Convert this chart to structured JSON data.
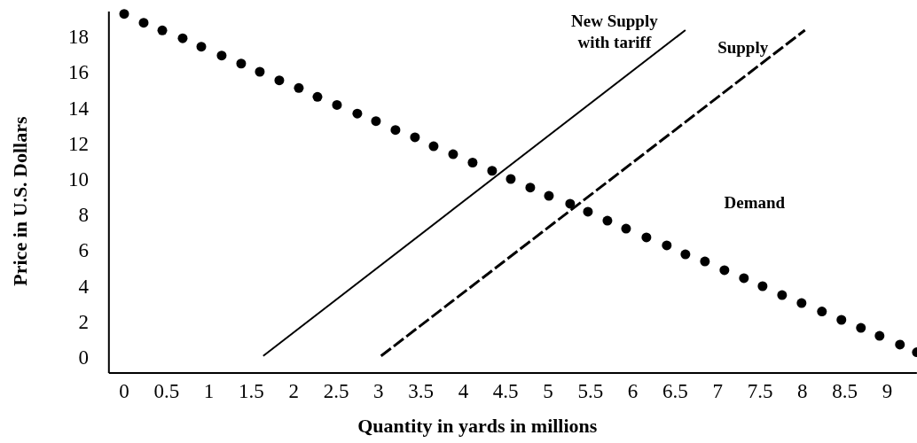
{
  "chart_data": {
    "type": "line",
    "xlabel": "Quantity in yards in millions",
    "ylabel": "Price in U.S. Dollars",
    "xlim": [
      -0.18,
      9.35
    ],
    "ylim": [
      -0.9,
      19.4
    ],
    "xticks": [
      0,
      0.5,
      1,
      1.5,
      2,
      2.5,
      3,
      3.5,
      4,
      4.5,
      5,
      5.5,
      6,
      6.5,
      7,
      7.5,
      8,
      8.5,
      9
    ],
    "yticks": [
      0,
      2,
      4,
      6,
      8,
      10,
      12,
      14,
      16,
      18
    ],
    "grid": false,
    "legend": false,
    "series": [
      {
        "name": "New Supply with tariff",
        "type": "line",
        "line_style": "solid",
        "color": "#000000",
        "x": [
          1.64,
          6.62
        ],
        "values": [
          0.06,
          18.36
        ]
      },
      {
        "name": "Supply",
        "type": "line",
        "line_style": "dashed",
        "color": "#000000",
        "x": [
          3.03,
          8.03
        ],
        "values": [
          0.06,
          18.36
        ]
      },
      {
        "name": "Demand",
        "type": "scatter",
        "marker": "circle",
        "color": "#000000",
        "x": [
          0,
          0.23,
          0.45,
          0.69,
          0.91,
          1.15,
          1.38,
          1.6,
          1.83,
          2.06,
          2.28,
          2.51,
          2.75,
          2.97,
          3.2,
          3.43,
          3.65,
          3.88,
          4.11,
          4.34,
          4.56,
          4.79,
          5.01,
          5.26,
          5.47,
          5.7,
          5.92,
          6.16,
          6.4,
          6.62,
          6.85,
          7.08,
          7.31,
          7.53,
          7.76,
          7.99,
          8.23,
          8.46,
          8.69,
          8.91,
          9.15,
          9.35
        ],
        "values": [
          19.27,
          18.77,
          18.34,
          17.9,
          17.43,
          16.93,
          16.48,
          16.02,
          15.54,
          15.11,
          14.61,
          14.16,
          13.67,
          13.25,
          12.75,
          12.34,
          11.84,
          11.39,
          10.92,
          10.46,
          10.0,
          9.52,
          9.05,
          8.61,
          8.16,
          7.66,
          7.21,
          6.72,
          6.27,
          5.77,
          5.37,
          4.88,
          4.43,
          3.98,
          3.48,
          3.03,
          2.56,
          2.09,
          1.64,
          1.19,
          0.7,
          0.27
        ]
      }
    ]
  }
}
